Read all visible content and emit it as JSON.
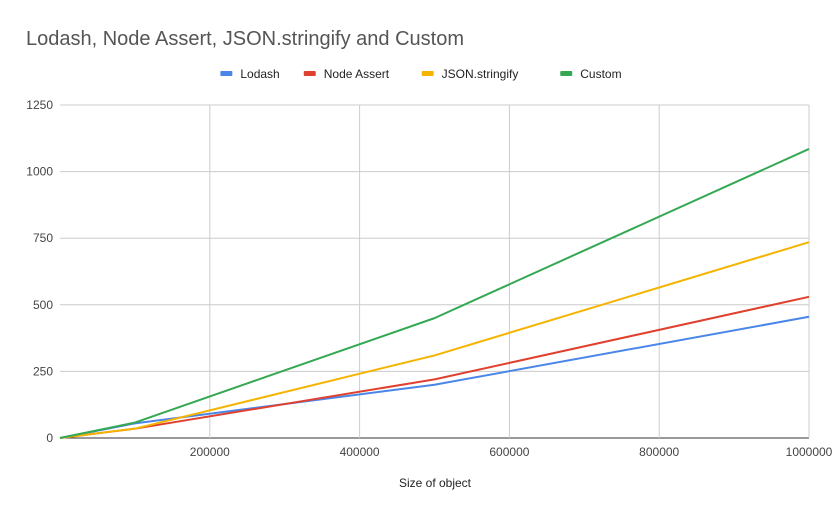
{
  "chart_data": {
    "type": "line",
    "title": "Lodash, Node Assert, JSON.stringify and Custom",
    "xlabel": "Size of object",
    "ylabel": "",
    "x": [
      0,
      100000,
      500000,
      1000000
    ],
    "xlim": [
      0,
      1000000
    ],
    "ylim": [
      0,
      1250
    ],
    "x_ticks": [
      "200000",
      "400000",
      "600000",
      "800000",
      "1000000"
    ],
    "y_ticks": [
      "0",
      "250",
      "500",
      "750",
      "1000",
      "1250"
    ],
    "x_tick_values": [
      200000,
      400000,
      600000,
      800000,
      1000000
    ],
    "y_tick_values": [
      0,
      250,
      500,
      750,
      1000,
      1250
    ],
    "grid": true,
    "legend_position": "top",
    "series": [
      {
        "name": "Lodash",
        "color": "#4a86e8",
        "values": [
          0,
          55,
          200,
          455
        ]
      },
      {
        "name": "Node Assert",
        "color": "#e0412f",
        "values": [
          0,
          35,
          220,
          530
        ]
      },
      {
        "name": "JSON.stringify",
        "color": "#f4b400",
        "values": [
          0,
          35,
          310,
          735
        ]
      },
      {
        "name": "Custom",
        "color": "#34a853",
        "values": [
          0,
          58,
          450,
          1085
        ]
      }
    ]
  }
}
